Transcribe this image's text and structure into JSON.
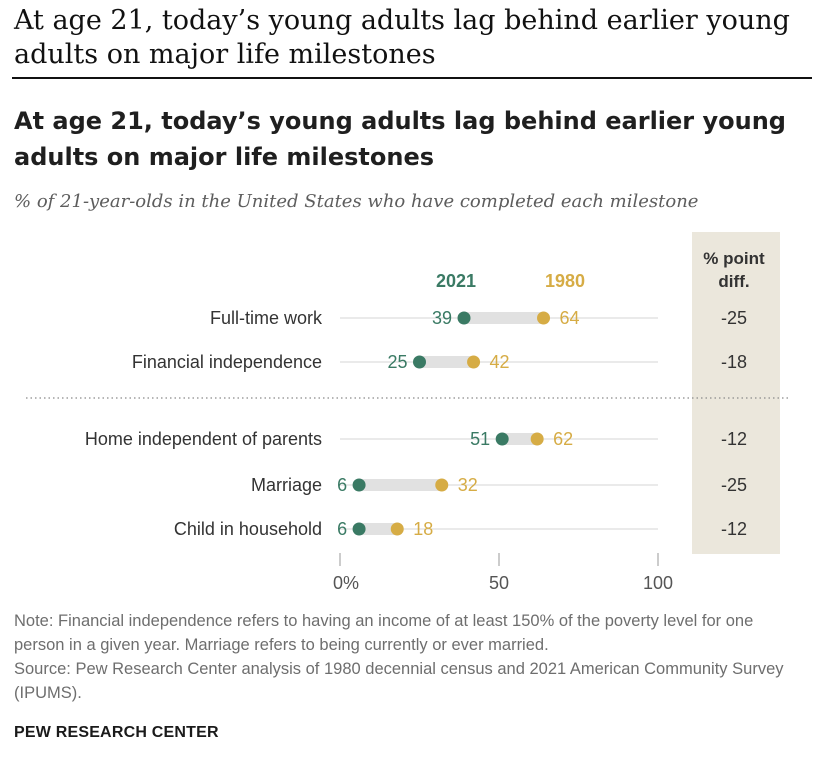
{
  "page": {
    "heading": "At age 21, today’s young adults lag behind earlier young adults on major life milestones"
  },
  "colors": {
    "series_2021": "#3a7a64",
    "series_1980": "#d6ac45",
    "connector": "#e1e1e1",
    "diff_panel": "#ebe7dc",
    "gridline": "#d4d4d4"
  },
  "chart_data": {
    "type": "dot",
    "title": "At age 21, today’s young adults lag behind earlier young adults on major life milestones",
    "subtitle": "% of 21-year-olds in the United States who have completed each milestone",
    "categories": [
      "Full-time work",
      "Financial independence",
      "Home independent of parents",
      "Marriage",
      "Child in household"
    ],
    "series": [
      {
        "name": "2021",
        "values": [
          39,
          25,
          51,
          6,
          6
        ]
      },
      {
        "name": "1980",
        "values": [
          64,
          42,
          62,
          32,
          18
        ]
      }
    ],
    "diff_header": [
      "% point",
      "diff."
    ],
    "diffs": [
      "-25",
      "-18",
      "-12",
      "-25",
      "-12"
    ],
    "xlim": [
      0,
      100
    ],
    "xticks": [
      0,
      50,
      100
    ],
    "xtick_labels": [
      "0%",
      "50",
      "100"
    ],
    "group_divider_after_index": 1
  },
  "footer": {
    "note_1": "Note: Financial independence refers to having an income of at least 150% of the poverty level for one person in a given year. Marriage refers to being currently or ever married.",
    "note_2": "Source: Pew Research Center analysis of 1980 decennial census and 2021 American Community Survey (IPUMS).",
    "brand": "PEW RESEARCH CENTER"
  }
}
